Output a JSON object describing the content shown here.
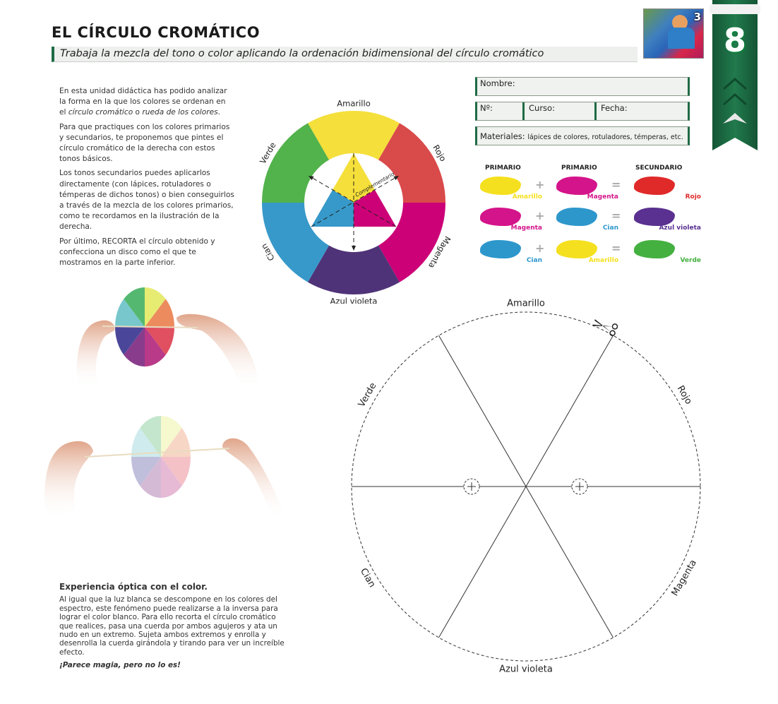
{
  "header": {
    "title": "EL CÍRCULO CROMÁTICO",
    "subtitle": "Trabaja la mezcla del tono o color aplicando la ordenación bidimensional del círculo cromático",
    "thumbnail_number": "3",
    "unit_number": "8",
    "accent_color": "#1e6b45"
  },
  "intro": {
    "p1_a": "En esta unidad didáctica has podido analizar la forma en la que los colores se ordenan en el ",
    "p1_em1": "círculo cromático",
    "p1_b": " o ",
    "p1_em2": "rueda de los colores",
    "p1_c": ".",
    "p2": "Para que practiques con los colores primarios y secundarios, te proponemos que pintes el círculo cromático de la derecha con estos tonos básicos.",
    "p3": "Los tonos secundarios puedes aplicarlos directamente (con lápices, rotuladores o témperas de dichos tonos) o bien conseguirlos a través de la mezcla de los colores primarios, como te recordamos en la ilustración de la derecha.",
    "p4": "Por último, RECORTA el círculo obtenido y confecciona un disco como el que te mostramos en la parte inferior."
  },
  "form": {
    "name_label": "Nombre:",
    "number_label": "Nº:",
    "course_label": "Curso:",
    "date_label": "Fecha:",
    "materials_label": "Materiales:",
    "materials_value": "lápices de colores, rotuladores, témperas, etc."
  },
  "wheel": {
    "labels": [
      "Amarillo",
      "Rojo",
      "Magenta",
      "Azul violeta",
      "Cian",
      "Verde"
    ],
    "colors": [
      "#f5df3a",
      "#d94a4a",
      "#cc0077",
      "#4f3378",
      "#3799c9",
      "#52b24c"
    ],
    "complementary_label": "Complementario"
  },
  "mixing": {
    "headers": [
      "PRIMARIO",
      "PRIMARIO",
      "SECUNDARIO"
    ],
    "plus": "+",
    "equals": "=",
    "rows": [
      {
        "a": "Amarillo",
        "a_color": "#f5e020",
        "b": "Magenta",
        "b_color": "#d4148a",
        "c": "Rojo",
        "c_color": "#e02a2a"
      },
      {
        "a": "Magenta",
        "a_color": "#d4148a",
        "b": "Cian",
        "b_color": "#2d97cc",
        "c": "Azul violeta",
        "c_color": "#5a3090"
      },
      {
        "a": "Cian",
        "a_color": "#2d97cc",
        "b": "Amarillo",
        "b_color": "#f5e020",
        "c": "Verde",
        "c_color": "#44b040"
      }
    ]
  },
  "cutout": {
    "labels": [
      "Amarillo",
      "Rojo",
      "Magenta",
      "Azul violeta",
      "Cian",
      "Verde"
    ]
  },
  "experience": {
    "title": "Experiencia óptica con el color.",
    "body": "Al igual que la luz blanca se descompone en los colores del espectro, este fenómeno puede realizarse a la inversa para lograr el color blanco. Para ello recorta el círculo cromático que realices, pasa una cuerda por ambos agujeros y ata un nudo en un extremo. Sujeta ambos extremos y enrolla y desenrolla la cuerda girándola y tirando para ver un increíble efecto.",
    "closing": "¡Parece magia, pero no lo es!"
  }
}
